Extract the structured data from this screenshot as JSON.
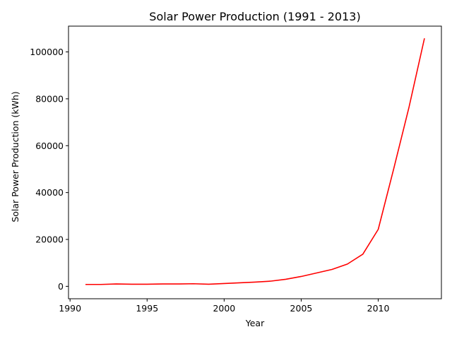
{
  "chart_data": {
    "type": "line",
    "title": "Solar Power Production (1991 - 2013)",
    "xlabel": "Year",
    "ylabel": "Solar Power Production (kWh)",
    "xlim": [
      1989.9,
      2014.1
    ],
    "ylim": [
      -5300,
      111000
    ],
    "x_ticks": [
      1990,
      1995,
      2000,
      2005,
      2010
    ],
    "y_ticks": [
      0,
      20000,
      40000,
      60000,
      80000,
      100000
    ],
    "grid": false,
    "series": [
      {
        "color": "#ff0000",
        "x": [
          1991,
          1992,
          1993,
          1994,
          1995,
          1996,
          1997,
          1998,
          1999,
          2000,
          2001,
          2002,
          2003,
          2004,
          2005,
          2006,
          2007,
          2008,
          2009,
          2010,
          2011,
          2012,
          2013
        ],
        "values": [
          800,
          800,
          1000,
          900,
          900,
          1000,
          1000,
          1100,
          900,
          1200,
          1500,
          1800,
          2200,
          3000,
          4200,
          5700,
          7200,
          9500,
          13700,
          24300,
          50000,
          76500,
          105800
        ]
      }
    ]
  }
}
